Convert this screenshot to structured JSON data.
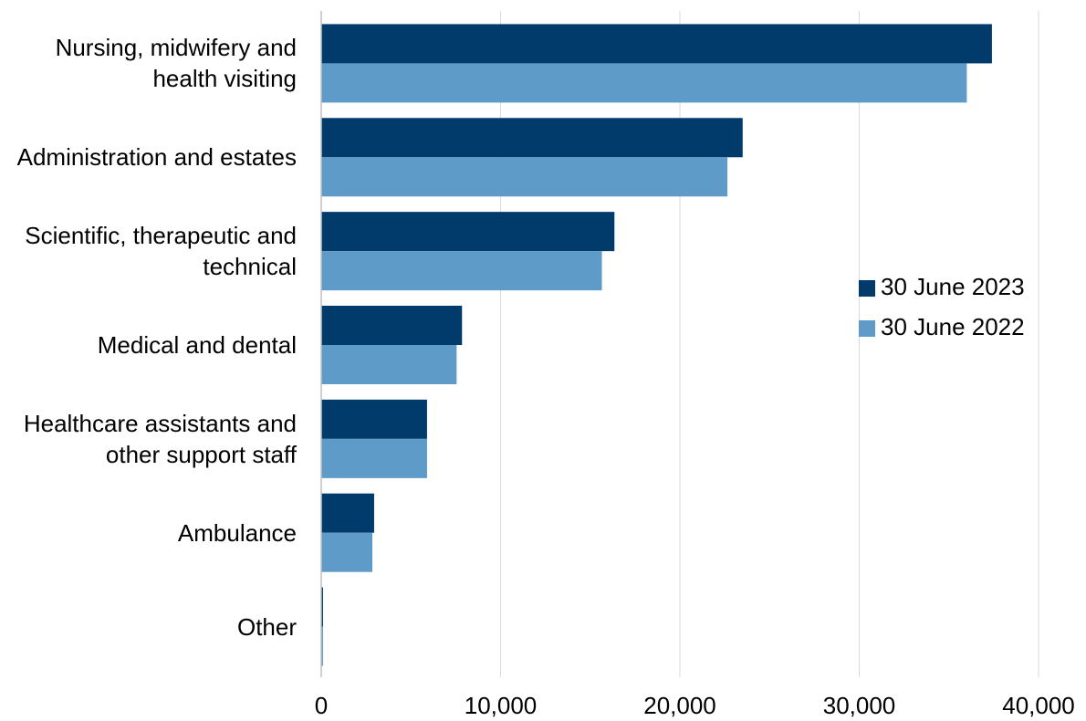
{
  "chart_data": {
    "type": "barh",
    "categories": [
      "Nursing, midwifery and health visiting",
      "Administration and estates",
      "Scientific, therapeutic and technical",
      "Medical and dental",
      "Healthcare assistants and other support staff",
      "Ambulance",
      "Other"
    ],
    "series": [
      {
        "name": "30 June 2023",
        "color": "#003b6b",
        "values": [
          37400,
          23500,
          16350,
          7850,
          5900,
          2950,
          100
        ]
      },
      {
        "name": "30 June 2022",
        "color": "#5e9bc9",
        "values": [
          36000,
          22650,
          15650,
          7550,
          5900,
          2850,
          100
        ]
      }
    ],
    "xlim": [
      0,
      40000
    ],
    "xticks": [
      0,
      {
        "value": 10000,
        "label": "10,000"
      },
      {
        "value": 20000,
        "label": "20,000"
      },
      {
        "value": 30000,
        "label": "30,000"
      },
      {
        "value": 40000,
        "label": "40,000"
      }
    ],
    "grid": true,
    "legend": "right"
  }
}
